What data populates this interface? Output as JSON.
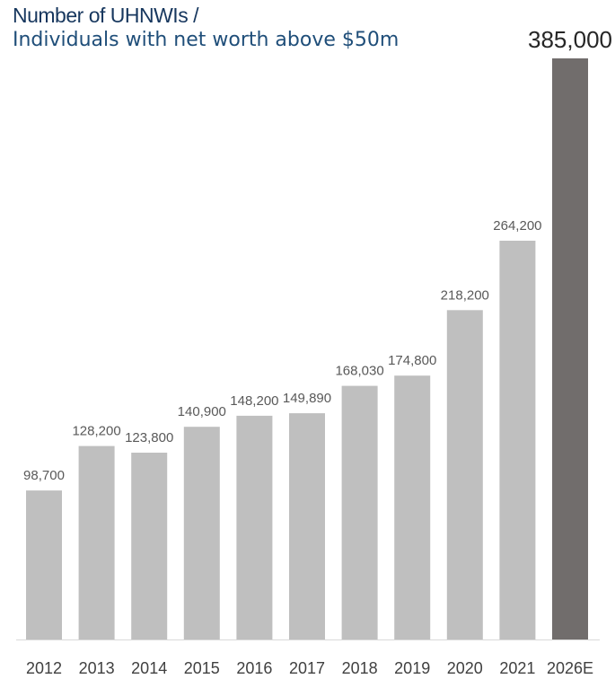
{
  "chart_data": {
    "type": "bar",
    "title": "Number of UHNWIs /",
    "subtitle": "Individuals with net worth above $50m",
    "xlabel": "",
    "ylabel": "",
    "categories": [
      "2012",
      "2013",
      "2014",
      "2015",
      "2016",
      "2017",
      "2018",
      "2019",
      "2020",
      "2021",
      "2026E"
    ],
    "values": [
      98700,
      128200,
      123800,
      140900,
      148200,
      149890,
      168030,
      174800,
      218200,
      264200,
      385000
    ],
    "value_labels": [
      "98,700",
      "128,200",
      "123,800",
      "140,900",
      "148,200",
      "149,890",
      "168,030",
      "174,800",
      "218,200",
      "264,200",
      "385,000"
    ],
    "highlight_index": 10,
    "ylim": [
      0,
      385000
    ],
    "grid": false,
    "colors": {
      "bar": "#bfbfbf",
      "highlight_bar": "#716d6c",
      "axis": "#d9d9d9"
    }
  }
}
